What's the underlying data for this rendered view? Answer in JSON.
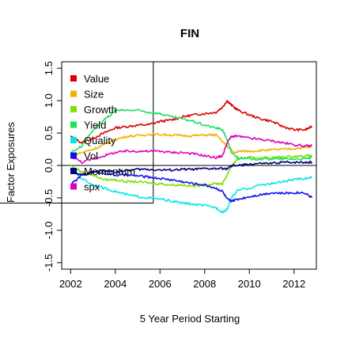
{
  "chart_data": {
    "type": "line",
    "title": "FIN",
    "xlabel": "5 Year Period Starting",
    "ylabel": "Factor Exposures",
    "xlim": [
      2001.6,
      2013.0
    ],
    "ylim": [
      -1.6,
      1.6
    ],
    "x_ticks": [
      2002,
      2004,
      2006,
      2008,
      2010,
      2012
    ],
    "x_tick_labels": [
      "2002",
      "2004",
      "2006",
      "2008",
      "2010",
      "2012"
    ],
    "y_ticks": [
      -1.5,
      -1.0,
      -0.5,
      0.0,
      0.5,
      1.0,
      1.5
    ],
    "y_tick_labels": [
      "-1.5",
      "-1.0",
      "-0.5",
      "0.0",
      "0.5",
      "1.0",
      "1.5"
    ],
    "legend_position": "top-left",
    "reference_lines": {
      "hline_y": 0.0,
      "vline_x": 2005.7,
      "hline2_y": -0.58
    },
    "series": [
      {
        "name": "Value",
        "color": "#dd0000",
        "x": [
          2002.0,
          2002.5,
          2003.0,
          2003.5,
          2004.0,
          2004.5,
          2005.0,
          2005.5,
          2006.0,
          2006.5,
          2007.0,
          2007.5,
          2008.0,
          2008.5,
          2008.8,
          2009.0,
          2009.2,
          2009.5,
          2010.0,
          2010.5,
          2011.0,
          2011.5,
          2012.0,
          2012.5,
          2012.8
        ],
        "y": [
          0.45,
          0.35,
          0.42,
          0.5,
          0.58,
          0.6,
          0.62,
          0.63,
          0.68,
          0.7,
          0.75,
          0.78,
          0.8,
          0.82,
          0.9,
          1.0,
          0.93,
          0.85,
          0.78,
          0.72,
          0.68,
          0.6,
          0.55,
          0.55,
          0.6
        ]
      },
      {
        "name": "Size",
        "color": "#f0b400",
        "x": [
          2002.0,
          2002.5,
          2003.0,
          2003.5,
          2004.0,
          2004.5,
          2005.0,
          2005.5,
          2006.0,
          2006.5,
          2007.0,
          2007.5,
          2008.0,
          2008.5,
          2009.0,
          2009.3,
          2009.6,
          2010.0,
          2010.5,
          2011.0,
          2011.5,
          2012.0,
          2012.5,
          2012.8
        ],
        "y": [
          0.15,
          0.2,
          0.25,
          0.32,
          0.4,
          0.45,
          0.46,
          0.48,
          0.48,
          0.47,
          0.46,
          0.46,
          0.47,
          0.47,
          0.3,
          0.2,
          0.22,
          0.22,
          0.23,
          0.24,
          0.25,
          0.26,
          0.28,
          0.29
        ]
      },
      {
        "name": "Growth",
        "color": "#80e000",
        "x": [
          2002.0,
          2002.5,
          2003.0,
          2003.5,
          2004.0,
          2004.5,
          2005.0,
          2005.5,
          2006.0,
          2006.5,
          2007.0,
          2007.5,
          2008.0,
          2008.5,
          2008.8,
          2009.0,
          2009.2,
          2009.5,
          2010.0,
          2010.5,
          2011.0,
          2011.5,
          2012.0,
          2012.5,
          2012.8
        ],
        "y": [
          0.0,
          -0.1,
          -0.15,
          -0.22,
          -0.22,
          -0.25,
          -0.25,
          -0.27,
          -0.28,
          -0.3,
          -0.3,
          -0.32,
          -0.3,
          -0.28,
          -0.28,
          -0.15,
          0.0,
          0.1,
          0.12,
          0.12,
          0.12,
          0.13,
          0.14,
          0.15,
          0.15
        ]
      },
      {
        "name": "Yield",
        "color": "#20e060",
        "x": [
          2002.0,
          2002.5,
          2003.0,
          2003.5,
          2003.8,
          2004.0,
          2004.5,
          2005.0,
          2005.5,
          2006.0,
          2006.5,
          2007.0,
          2007.5,
          2008.0,
          2008.5,
          2008.8,
          2009.0,
          2009.2,
          2009.5,
          2010.0,
          2010.5,
          2011.0,
          2011.5,
          2012.0,
          2012.5,
          2012.8
        ],
        "y": [
          0.2,
          0.3,
          0.55,
          0.7,
          0.78,
          0.85,
          0.85,
          0.85,
          0.82,
          0.8,
          0.75,
          0.72,
          0.68,
          0.62,
          0.58,
          0.55,
          0.4,
          0.2,
          0.12,
          0.1,
          0.1,
          0.1,
          0.1,
          0.1,
          0.1,
          0.12
        ]
      },
      {
        "name": "Quality",
        "color": "#00e8e8",
        "x": [
          2002.0,
          2002.5,
          2003.0,
          2003.5,
          2004.0,
          2004.5,
          2005.0,
          2005.5,
          2006.0,
          2006.5,
          2007.0,
          2007.5,
          2008.0,
          2008.5,
          2008.8,
          2009.0,
          2009.2,
          2009.5,
          2010.0,
          2010.5,
          2011.0,
          2011.5,
          2012.0,
          2012.5,
          2012.8
        ],
        "y": [
          -0.05,
          -0.2,
          -0.3,
          -0.35,
          -0.4,
          -0.45,
          -0.48,
          -0.5,
          -0.52,
          -0.55,
          -0.58,
          -0.6,
          -0.62,
          -0.65,
          -0.72,
          -0.68,
          -0.5,
          -0.38,
          -0.35,
          -0.3,
          -0.28,
          -0.25,
          -0.22,
          -0.2,
          -0.18
        ]
      },
      {
        "name": "Vol",
        "color": "#1010ee",
        "x": [
          2002.0,
          2002.5,
          2003.0,
          2003.5,
          2004.0,
          2004.5,
          2005.0,
          2005.5,
          2006.0,
          2006.5,
          2007.0,
          2007.5,
          2008.0,
          2008.5,
          2008.8,
          2009.0,
          2009.2,
          2009.5,
          2010.0,
          2010.5,
          2011.0,
          2011.5,
          2012.0,
          2012.5,
          2012.8
        ],
        "y": [
          -0.3,
          -0.15,
          -0.1,
          -0.12,
          -0.15,
          -0.15,
          -0.16,
          -0.18,
          -0.2,
          -0.22,
          -0.25,
          -0.28,
          -0.3,
          -0.35,
          -0.4,
          -0.52,
          -0.55,
          -0.52,
          -0.48,
          -0.45,
          -0.42,
          -0.43,
          -0.42,
          -0.42,
          -0.5
        ]
      },
      {
        "name": "Momentum",
        "color": "#000080",
        "x": [
          2002.0,
          2002.5,
          2003.0,
          2003.5,
          2004.0,
          2004.5,
          2005.0,
          2005.5,
          2006.0,
          2006.5,
          2007.0,
          2007.5,
          2008.0,
          2008.5,
          2009.0,
          2009.3,
          2009.6,
          2010.0,
          2010.5,
          2011.0,
          2011.5,
          2012.0,
          2012.5,
          2012.8
        ],
        "y": [
          -0.1,
          -0.15,
          -0.1,
          -0.08,
          -0.1,
          -0.08,
          -0.06,
          -0.06,
          -0.07,
          -0.07,
          -0.06,
          -0.06,
          -0.05,
          -0.05,
          -0.05,
          0.0,
          0.0,
          0.02,
          0.03,
          0.03,
          0.05,
          0.05,
          0.05,
          0.05
        ]
      },
      {
        "name": "spx",
        "color": "#dd00c0",
        "x": [
          2002.0,
          2002.5,
          2003.0,
          2003.5,
          2004.0,
          2004.5,
          2005.0,
          2005.5,
          2006.0,
          2006.5,
          2007.0,
          2007.5,
          2008.0,
          2008.5,
          2008.8,
          2009.0,
          2009.2,
          2009.5,
          2010.0,
          2010.5,
          2011.0,
          2011.5,
          2012.0,
          2012.5,
          2012.8
        ],
        "y": [
          0.15,
          0.05,
          0.1,
          0.15,
          0.2,
          0.22,
          0.22,
          0.22,
          0.22,
          0.2,
          0.2,
          0.18,
          0.15,
          0.12,
          0.15,
          0.35,
          0.45,
          0.45,
          0.42,
          0.4,
          0.38,
          0.35,
          0.32,
          0.3,
          0.3
        ]
      }
    ]
  }
}
